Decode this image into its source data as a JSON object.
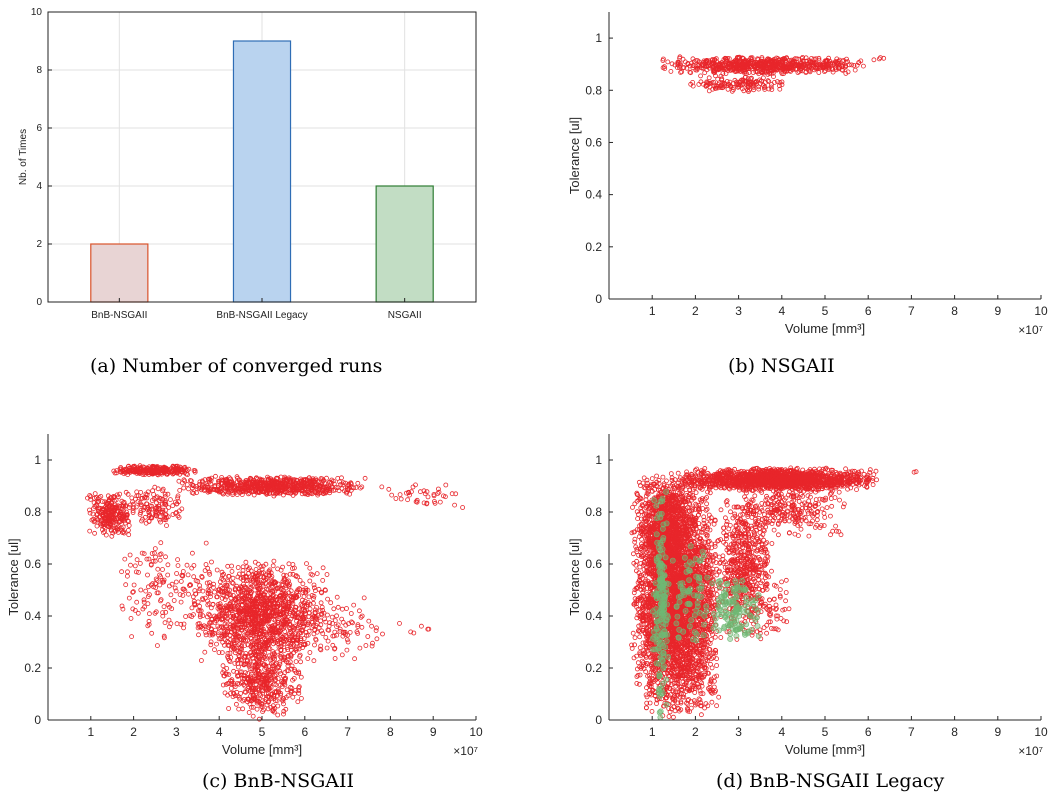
{
  "captions": {
    "a": "(a) Number of converged runs",
    "b": "(b) NSGAII",
    "c": "(c) BnB-NSGAII",
    "d": "(d) BnB-NSGAII Legacy"
  },
  "chart_data": [
    {
      "id": "a",
      "type": "bar",
      "categories": [
        "BnB-NSGAII",
        "BnB-NSGAII Legacy",
        "NSGAII"
      ],
      "values": [
        2,
        9,
        4
      ],
      "colors": [
        {
          "fill": "#e8d4d4",
          "edge": "#d9532b"
        },
        {
          "fill": "#b9d3ef",
          "edge": "#2f6db5"
        },
        {
          "fill": "#c2ddc4",
          "edge": "#2e7d34"
        }
      ],
      "ylabel": "Nb. of Times",
      "xlabel": "",
      "title": "",
      "ylim": [
        0,
        10
      ],
      "yticks": [
        0,
        2,
        4,
        6,
        8,
        10
      ],
      "grid": true
    },
    {
      "id": "b",
      "type": "scatter",
      "xlabel": "Volume [mm³]",
      "ylabel": "Tolerance [ul]",
      "x_exponent": "×10⁷",
      "xlim": [
        0,
        10
      ],
      "ylim": [
        0,
        1.1
      ],
      "xticks": [
        1,
        2,
        3,
        4,
        5,
        6,
        7,
        8,
        9,
        10
      ],
      "yticks": [
        0,
        0.2,
        0.4,
        0.6,
        0.8,
        1
      ],
      "grid": false,
      "series": [
        {
          "color": "#e8262b",
          "clusters": [
            {
              "x": [
                1.1,
                6.0
              ],
              "y": [
                0.86,
                0.93
              ],
              "n": 700
            },
            {
              "x": [
                1.8,
                4.2
              ],
              "y": [
                0.79,
                0.86
              ],
              "n": 140
            },
            {
              "x": [
                6.0,
                6.5
              ],
              "y": [
                0.915,
                0.93
              ],
              "n": 4
            }
          ]
        }
      ]
    },
    {
      "id": "c",
      "type": "scatter",
      "xlabel": "Volume [mm³]",
      "ylabel": "Tolerance [ul]",
      "x_exponent": "×10⁷",
      "xlim": [
        0,
        10
      ],
      "ylim": [
        0,
        1.1
      ],
      "xticks": [
        1,
        2,
        3,
        4,
        5,
        6,
        7,
        8,
        9,
        10
      ],
      "yticks": [
        0,
        0.2,
        0.4,
        0.6,
        0.8,
        1
      ],
      "grid": false,
      "series": [
        {
          "color": "#e8262b",
          "clusters": [
            {
              "x": [
                1.5,
                3.5
              ],
              "y": [
                0.94,
                0.98
              ],
              "n": 260
            },
            {
              "x": [
                3.0,
                7.5
              ],
              "y": [
                0.86,
                0.94
              ],
              "n": 700
            },
            {
              "x": [
                7.5,
                10.0
              ],
              "y": [
                0.8,
                0.92
              ],
              "n": 40
            },
            {
              "x": [
                0.9,
                2.0
              ],
              "y": [
                0.7,
                0.88
              ],
              "n": 260
            },
            {
              "x": [
                1.9,
                3.2
              ],
              "y": [
                0.74,
                0.9
              ],
              "n": 120
            },
            {
              "x": [
                1.5,
                4.0
              ],
              "y": [
                0.28,
                0.72
              ],
              "n": 160
            },
            {
              "x": [
                3.4,
                6.6
              ],
              "y": [
                0.2,
                0.62
              ],
              "n": 1300
            },
            {
              "x": [
                4.0,
                6.0
              ],
              "y": [
                0.0,
                0.3
              ],
              "n": 420
            },
            {
              "x": [
                5.5,
                8.0
              ],
              "y": [
                0.2,
                0.5
              ],
              "n": 100
            },
            {
              "x": [
                8.0,
                9.2
              ],
              "y": [
                0.28,
                0.42
              ],
              "n": 6
            }
          ]
        }
      ]
    },
    {
      "id": "d",
      "type": "scatter",
      "xlabel": "Volume [mm³]",
      "ylabel": "Tolerance [ul]",
      "x_exponent": "×10⁷",
      "xlim": [
        0,
        10
      ],
      "ylim": [
        0,
        1.1
      ],
      "xticks": [
        1,
        2,
        3,
        4,
        5,
        6,
        7,
        8,
        9,
        10
      ],
      "yticks": [
        0,
        0.2,
        0.4,
        0.6,
        0.8,
        1
      ],
      "grid": false,
      "series": [
        {
          "color": "#e8262b",
          "clusters": [
            {
              "x": [
                0.5,
                2.6
              ],
              "y": [
                0.0,
                0.96
              ],
              "n": 3800
            },
            {
              "x": [
                1.6,
                6.3
              ],
              "y": [
                0.88,
                0.97
              ],
              "n": 1500
            },
            {
              "x": [
                2.5,
                3.8
              ],
              "y": [
                0.3,
                0.88
              ],
              "n": 600
            },
            {
              "x": [
                0.7,
                1.9
              ],
              "y": [
                0.55,
                0.95
              ],
              "n": 600
            },
            {
              "x": [
                3.0,
                5.5
              ],
              "y": [
                0.7,
                0.92
              ],
              "n": 250
            },
            {
              "x": [
                3.5,
                4.2
              ],
              "y": [
                0.28,
                0.6
              ],
              "n": 40
            },
            {
              "x": [
                7.0,
                7.3
              ],
              "y": [
                0.94,
                0.96
              ],
              "n": 2
            }
          ]
        },
        {
          "color": "#6fb874",
          "clusters": [
            {
              "x": [
                1.0,
                1.4
              ],
              "y": [
                0.0,
                0.9
              ],
              "n": 180
            },
            {
              "x": [
                1.4,
                2.4
              ],
              "y": [
                0.25,
                0.7
              ],
              "n": 70
            },
            {
              "x": [
                2.3,
                3.5
              ],
              "y": [
                0.3,
                0.55
              ],
              "n": 120
            }
          ]
        }
      ]
    }
  ]
}
